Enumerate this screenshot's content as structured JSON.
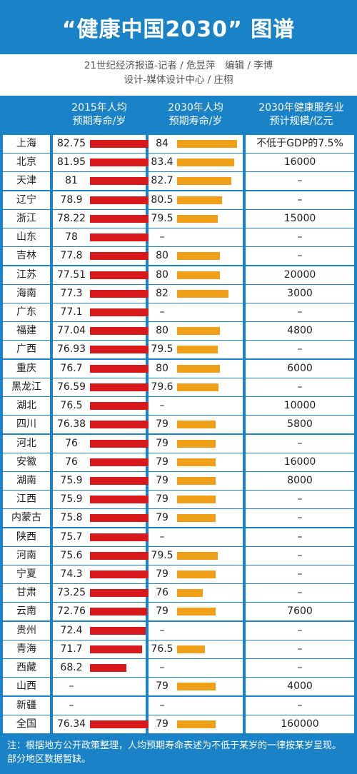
{
  "title": "“健康中国2030” 图谱",
  "credits": {
    "line1": "21世纪经济报道-记者 / 危昱萍　编辑 / 李博",
    "line2": "设计-媒体设计中心 / 庄栩"
  },
  "headers": {
    "col1_line1": "2015年人均",
    "col1_line2": "预期寿命/岁",
    "col2_line1": "2030年人均",
    "col2_line2": "预期寿命/岁",
    "col3_line1": "2030年健康服务业",
    "col3_line2": "预计规模/亿元"
  },
  "note": "注：根据地方公开政策整理，人均预期寿命表述为不低于某岁的一律按某岁呈现。部分地区数据暂缺。",
  "colors": {
    "blue": "#1a83c7",
    "red_bar": "#d7191c",
    "orange_bar": "#f0a018"
  },
  "chart_data": {
    "type": "table",
    "columns": [
      "2015年人均预期寿命/岁",
      "2030年人均预期寿命/岁",
      "2030年健康服务业预计规模/亿元"
    ],
    "rows": [
      {
        "province": "上海",
        "life2015": "82.75",
        "life2030": "84",
        "scale2030": "不低于GDP的7.5%"
      },
      {
        "province": "北京",
        "life2015": "81.95",
        "life2030": "83.4",
        "scale2030": "16000"
      },
      {
        "province": "天津",
        "life2015": "81",
        "life2030": "82.7",
        "scale2030": "–"
      },
      {
        "province": "辽宁",
        "life2015": "78.9",
        "life2030": "80.5",
        "scale2030": "–"
      },
      {
        "province": "浙江",
        "life2015": "78.22",
        "life2030": "79.5",
        "scale2030": "15000"
      },
      {
        "province": "山东",
        "life2015": "78",
        "life2030": "–",
        "scale2030": "–"
      },
      {
        "province": "吉林",
        "life2015": "77.8",
        "life2030": "80",
        "scale2030": "–"
      },
      {
        "province": "江苏",
        "life2015": "77.51",
        "life2030": "80",
        "scale2030": "20000"
      },
      {
        "province": "海南",
        "life2015": "77.3",
        "life2030": "82",
        "scale2030": "3000"
      },
      {
        "province": "广东",
        "life2015": "77.1",
        "life2030": "–",
        "scale2030": "–"
      },
      {
        "province": "福建",
        "life2015": "77.04",
        "life2030": "80",
        "scale2030": "4800"
      },
      {
        "province": "广西",
        "life2015": "76.93",
        "life2030": "79.5",
        "scale2030": "–"
      },
      {
        "province": "重庆",
        "life2015": "76.7",
        "life2030": "80",
        "scale2030": "6000"
      },
      {
        "province": "黑龙江",
        "life2015": "76.59",
        "life2030": "79.6",
        "scale2030": "–"
      },
      {
        "province": "湖北",
        "life2015": "76.5",
        "life2030": "–",
        "scale2030": "10000"
      },
      {
        "province": "四川",
        "life2015": "76.38",
        "life2030": "79",
        "scale2030": "5800"
      },
      {
        "province": "河北",
        "life2015": "76",
        "life2030": "79",
        "scale2030": "–"
      },
      {
        "province": "安徽",
        "life2015": "76",
        "life2030": "79",
        "scale2030": "16000"
      },
      {
        "province": "湖南",
        "life2015": "75.9",
        "life2030": "79",
        "scale2030": "8000"
      },
      {
        "province": "江西",
        "life2015": "75.9",
        "life2030": "79",
        "scale2030": "–"
      },
      {
        "province": "内蒙古",
        "life2015": "75.8",
        "life2030": "79",
        "scale2030": "–"
      },
      {
        "province": "陕西",
        "life2015": "75.7",
        "life2030": "–",
        "scale2030": "–"
      },
      {
        "province": "河南",
        "life2015": "75.6",
        "life2030": "79.5",
        "scale2030": "–"
      },
      {
        "province": "宁夏",
        "life2015": "74.3",
        "life2030": "79",
        "scale2030": "–"
      },
      {
        "province": "甘肃",
        "life2015": "73.25",
        "life2030": "76",
        "scale2030": "–"
      },
      {
        "province": "云南",
        "life2015": "72.76",
        "life2030": "79",
        "scale2030": "7600"
      },
      {
        "province": "贵州",
        "life2015": "72.4",
        "life2030": "–",
        "scale2030": "–"
      },
      {
        "province": "青海",
        "life2015": "71.7",
        "life2030": "76.5",
        "scale2030": "–"
      },
      {
        "province": "西藏",
        "life2015": "68.2",
        "life2030": "–",
        "scale2030": "–"
      },
      {
        "province": "山西",
        "life2015": "–",
        "life2030": "79",
        "scale2030": "4000"
      },
      {
        "province": "新疆",
        "life2015": "–",
        "life2030": "–",
        "scale2030": "–"
      },
      {
        "province": "全国",
        "life2015": "76.34",
        "life2030": "79",
        "scale2030": "160000"
      }
    ]
  }
}
